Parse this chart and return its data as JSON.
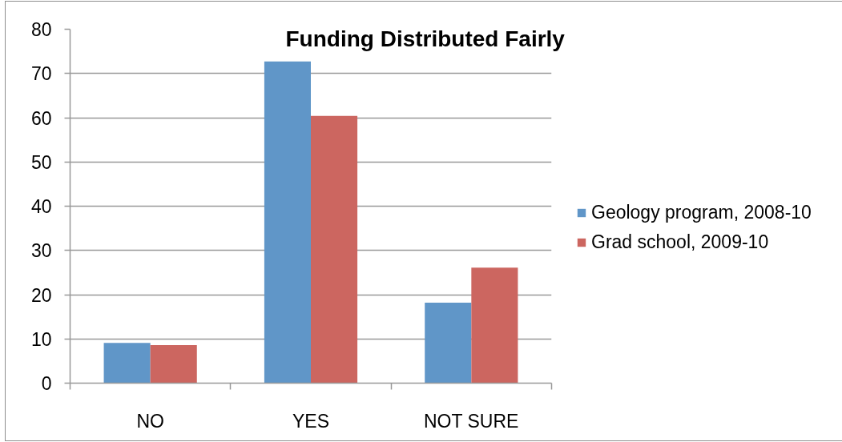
{
  "chart_data": {
    "type": "bar",
    "title": "Funding Distributed Fairly",
    "categories": [
      "NO",
      "YES",
      "NOT SURE"
    ],
    "series": [
      {
        "name": "Geology program, 2008-10",
        "color": "#6096c8",
        "values": [
          9.1,
          72.7,
          18.2
        ]
      },
      {
        "name": "Grad school, 2009-10",
        "color": "#cc6660",
        "values": [
          8.6,
          60.4,
          26.1
        ]
      }
    ],
    "ylim": [
      0,
      80
    ],
    "yticks": [
      0,
      10,
      20,
      30,
      40,
      50,
      60,
      70,
      80
    ],
    "grid": "y",
    "legend": "right"
  }
}
